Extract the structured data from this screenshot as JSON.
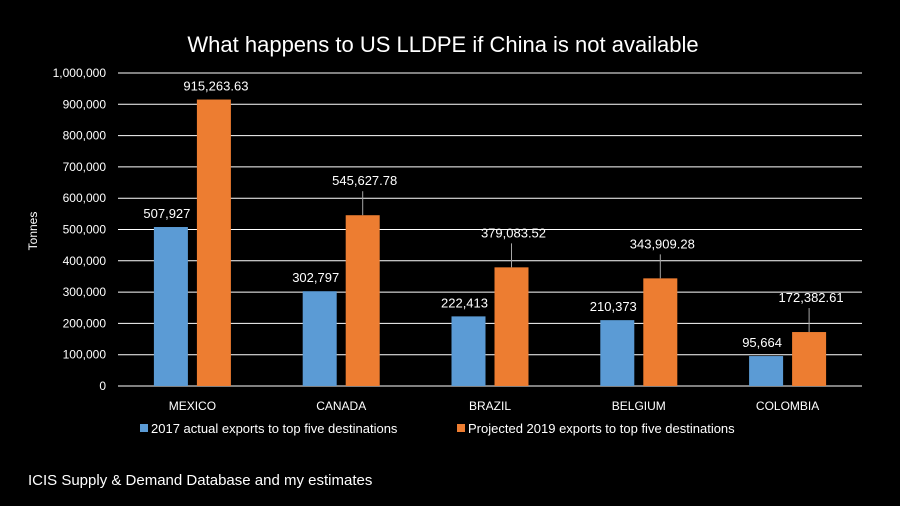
{
  "chart_data": {
    "type": "bar",
    "title": "What happens to US LLDPE if China is not available",
    "ylabel": "Tonnes",
    "xlabel": "",
    "ylim": [
      0,
      1000000
    ],
    "y_tick_step": 100000,
    "y_tick_labels": [
      "0",
      "100,000",
      "200,000",
      "300,000",
      "400,000",
      "500,000",
      "600,000",
      "700,000",
      "800,000",
      "900,000",
      "1,000,000"
    ],
    "grid": true,
    "legend_position": "bottom",
    "categories": [
      "MEXICO",
      "CANADA",
      "BRAZIL",
      "BELGIUM",
      "COLOMBIA"
    ],
    "series": [
      {
        "name": "2017 actual exports to top five destinations",
        "color": "#5b9bd5",
        "values": [
          507927,
          302797,
          222413,
          210373,
          95664
        ],
        "labels": [
          "507,927",
          "302,797",
          "222,413",
          "210,373",
          "95,664"
        ]
      },
      {
        "name": "Projected 2019 exports to top five destinations",
        "color": "#ed7d31",
        "values": [
          915263.63,
          545627.78,
          379083.52,
          343909.28,
          172382.61
        ],
        "labels": [
          "915,263.63",
          "545,627.78",
          "379,083.52",
          "343,909.28",
          "172,382.61"
        ]
      }
    ]
  },
  "footer": {
    "source": "ICIS Supply & Demand Database and my estimates"
  },
  "colors": {
    "background": "#000000",
    "gridline": "#ffffff",
    "text": "#ffffff",
    "leader_line": "#a6a6a6"
  }
}
